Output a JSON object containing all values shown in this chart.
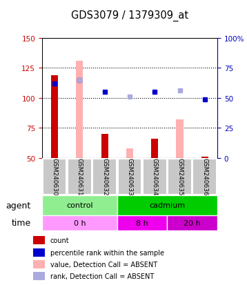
{
  "title": "GDS3079 / 1379309_at",
  "samples": [
    "GSM240630",
    "GSM240631",
    "GSM240632",
    "GSM240633",
    "GSM240634",
    "GSM240635",
    "GSM240636"
  ],
  "bar_red_values": [
    119,
    0,
    70,
    0,
    66,
    0,
    51
  ],
  "bar_pink_values": [
    0,
    131,
    0,
    58,
    0,
    82,
    0
  ],
  "dot_blue_values": [
    112,
    115,
    105,
    0,
    105,
    0,
    99
  ],
  "dot_lightblue_values": [
    0,
    115,
    0,
    101,
    0,
    106,
    0
  ],
  "ylim_left": [
    50,
    150
  ],
  "ylim_right": [
    0,
    100
  ],
  "yticks_left": [
    50,
    75,
    100,
    125,
    150
  ],
  "yticks_right": [
    0,
    25,
    50,
    75,
    100
  ],
  "ytick_labels_right": [
    "0",
    "25",
    "50",
    "75",
    "100%"
  ],
  "agent_groups": [
    {
      "label": "control",
      "start": 0,
      "end": 3,
      "color": "#90EE90"
    },
    {
      "label": "cadmium",
      "start": 3,
      "end": 7,
      "color": "#00CC00"
    }
  ],
  "time_groups": [
    {
      "label": "0 h",
      "start": 0,
      "end": 3,
      "color": "#FF99FF"
    },
    {
      "label": "8 h",
      "start": 3,
      "end": 5,
      "color": "#EE00EE"
    },
    {
      "label": "20 h",
      "start": 5,
      "end": 7,
      "color": "#CC00CC"
    }
  ],
  "legend_items": [
    {
      "label": "count",
      "color": "#CC0000",
      "marker": "s"
    },
    {
      "label": "percentile rank within the sample",
      "color": "#0000CC",
      "marker": "s"
    },
    {
      "label": "value, Detection Call = ABSENT",
      "color": "#FFB6C1",
      "marker": "s"
    },
    {
      "label": "rank, Detection Call = ABSENT",
      "color": "#AAAAEE",
      "marker": "s"
    }
  ],
  "bar_width": 0.35,
  "left_axis_color": "#CC0000",
  "right_axis_color": "#0000BB"
}
